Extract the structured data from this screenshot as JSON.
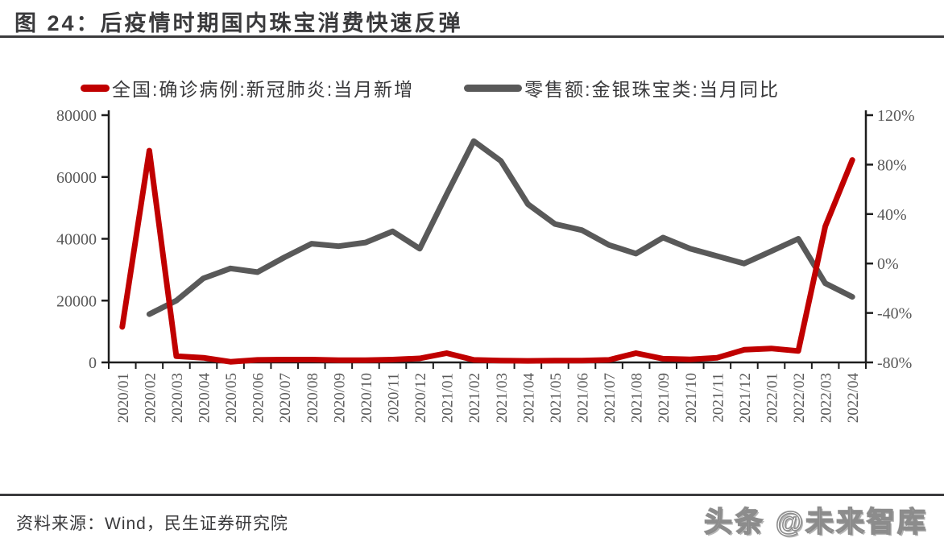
{
  "title": "图 24：后疫情时期国内珠宝消费快速反弹",
  "footer": {
    "source": "资料来源：Wind，民生证券研究院",
    "watermark": "头条 @未来智库"
  },
  "colors": {
    "covid_line": "#c00000",
    "retail_line": "#595959",
    "axis_line": "#1d1d1d",
    "tick_text": "#595959",
    "heading_text": "#3a3a3c"
  },
  "chart_data": {
    "type": "line",
    "title": "后疫情时期国内珠宝消费快速反弹",
    "categories": [
      "2020/01",
      "2020/02",
      "2020/03",
      "2020/04",
      "2020/05",
      "2020/06",
      "2020/07",
      "2020/08",
      "2020/09",
      "2020/10",
      "2020/11",
      "2020/12",
      "2021/01",
      "2021/02",
      "2021/03",
      "2021/04",
      "2021/05",
      "2021/06",
      "2021/07",
      "2021/08",
      "2021/09",
      "2021/10",
      "2021/11",
      "2021/12",
      "2022/01",
      "2022/02",
      "2022/03",
      "2022/04"
    ],
    "series": [
      {
        "name": "全国:确诊病例:新冠肺炎:当月新增",
        "axis": "left",
        "color": "#c00000",
        "values": [
          11500,
          68500,
          2000,
          1500,
          200,
          800,
          900,
          900,
          700,
          700,
          900,
          1300,
          3000,
          800,
          600,
          500,
          600,
          600,
          800,
          3000,
          1200,
          1000,
          1500,
          4100,
          4500,
          3700,
          44000,
          65500
        ]
      },
      {
        "name": "零售额:金银珠宝类:当月同比",
        "axis": "right",
        "color": "#595959",
        "values": [
          null,
          -41,
          -30,
          -12,
          -4,
          -7,
          5,
          16,
          14,
          17,
          26,
          12,
          56,
          99,
          83,
          48,
          32,
          27,
          15,
          8,
          21,
          12,
          6,
          0,
          10,
          20,
          -16,
          -27
        ]
      }
    ],
    "left_axis": {
      "min": 0,
      "max": 80000,
      "ticks": [
        0,
        20000,
        40000,
        60000,
        80000
      ],
      "labels": [
        "0",
        "20000",
        "40000",
        "60000",
        "80000"
      ]
    },
    "right_axis": {
      "min": -80,
      "max": 120,
      "ticks": [
        -80,
        -40,
        0,
        40,
        80,
        120
      ],
      "labels": [
        "-80%",
        "-40%",
        "0%",
        "40%",
        "80%",
        "120%"
      ],
      "unit": "%"
    },
    "legend_position": "top",
    "grid": false
  }
}
